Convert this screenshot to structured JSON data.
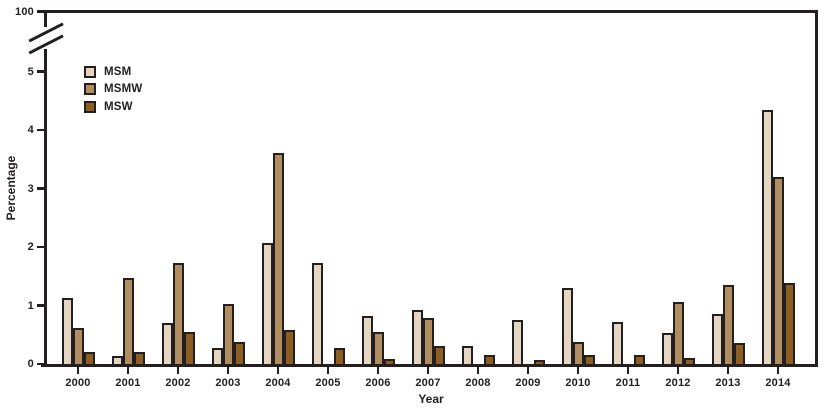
{
  "chart_data": {
    "type": "bar",
    "title": "",
    "xlabel": "Year",
    "ylabel": "Percentage",
    "categories": [
      "2000",
      "2001",
      "2002",
      "2003",
      "2004",
      "2005",
      "2006",
      "2007",
      "2008",
      "2009",
      "2010",
      "2011",
      "2012",
      "2013",
      "2014"
    ],
    "series": [
      {
        "name": "MSM",
        "color": "#e5d6c2",
        "values": [
          1.12,
          0.13,
          0.7,
          0.27,
          2.07,
          1.73,
          0.82,
          0.93,
          0.3,
          0.75,
          1.3,
          0.72,
          0.53,
          0.86,
          4.35
        ]
      },
      {
        "name": "MSMW",
        "color": "#b08e61",
        "values": [
          0.62,
          1.47,
          1.73,
          1.03,
          3.6,
          0,
          0.55,
          0.78,
          0,
          0,
          0.37,
          0,
          1.06,
          1.35,
          3.2
        ]
      },
      {
        "name": "MSW",
        "color": "#8c5e21",
        "values": [
          0.2,
          0.2,
          0.55,
          0.37,
          0.58,
          0.27,
          0.08,
          0.3,
          0.15,
          0.06,
          0.15,
          0.15,
          0.1,
          0.36,
          1.38
        ]
      }
    ],
    "y_axis": {
      "ticks": [
        0,
        1,
        2,
        3,
        4,
        5
      ],
      "broken_axis": true,
      "break_top_label": "100",
      "ylim_shown": [
        0,
        5.4
      ]
    },
    "grid": false,
    "legend_position": "upper-left-inside",
    "axis_color": "#231f20",
    "note_zero_bars": "no bar drawn for MSMW in 2005, 2008, 2009, 2011"
  }
}
